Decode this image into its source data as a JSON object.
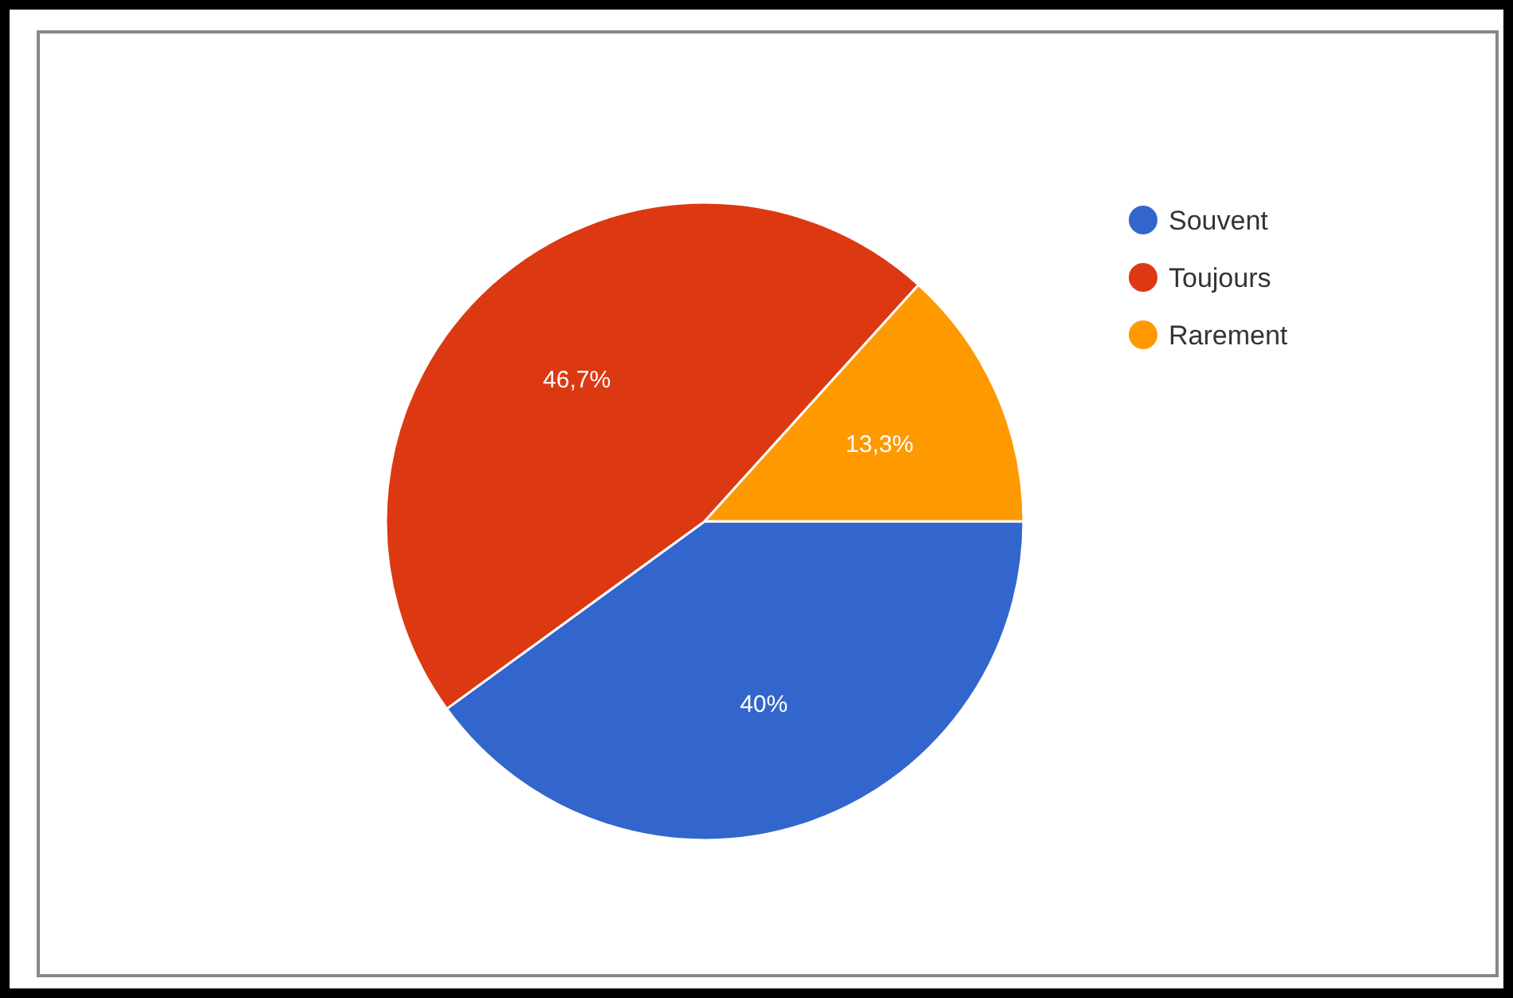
{
  "chart_data": {
    "type": "pie",
    "categories": [
      "Souvent",
      "Toujours",
      "Rarement"
    ],
    "values": [
      40,
      46.7,
      13.3
    ],
    "colors": [
      "#3366cc",
      "#dc3912",
      "#ff9900"
    ],
    "value_labels": [
      "40%",
      "46,7%",
      "13,3%"
    ],
    "legend": "top right"
  }
}
